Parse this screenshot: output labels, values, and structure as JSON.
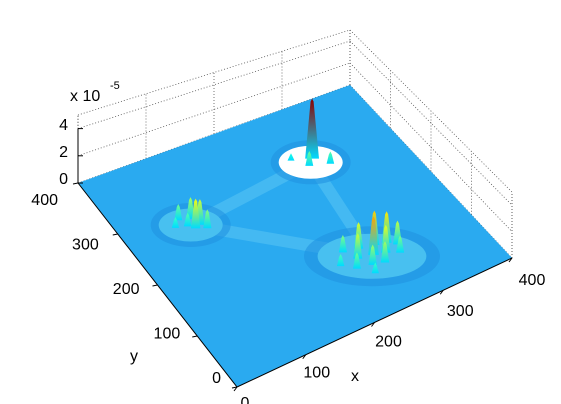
{
  "chart_data": {
    "type": "surface3d",
    "xlabel": "x",
    "ylabel": "y",
    "z_multiplier": "x 10",
    "z_exponent": "-5",
    "xlim": [
      0,
      400
    ],
    "xticks": [
      0,
      100,
      200,
      300,
      400
    ],
    "ylim": [
      0,
      400
    ],
    "yticks": [
      0,
      100,
      200,
      300,
      400
    ],
    "zlim": [
      0,
      5
    ],
    "zticks": [
      0,
      2,
      4
    ],
    "colormap": "jet",
    "floor_color": "#2aaaf0",
    "grid": true,
    "x": [
      285,
      260,
      300,
      275,
      80,
      95,
      100,
      85,
      70,
      105,
      92,
      230,
      250,
      270,
      285,
      295,
      240,
      260,
      275,
      250,
      230,
      290,
      265,
      215,
      245
    ],
    "y": [
      300,
      310,
      280,
      290,
      285,
      280,
      265,
      270,
      275,
      255,
      262,
      130,
      125,
      120,
      115,
      105,
      110,
      105,
      100,
      90,
      95,
      90,
      85,
      110,
      75
    ],
    "z": [
      4.9,
      0.6,
      1.0,
      1.2,
      1.2,
      1.6,
      1.9,
      1.0,
      0.8,
      1.4,
      2.2,
      1.3,
      2.0,
      2.6,
      2.4,
      1.8,
      1.9,
      2.9,
      2.1,
      1.5,
      1.2,
      1.3,
      1.6,
      0.9,
      0.8
    ]
  }
}
